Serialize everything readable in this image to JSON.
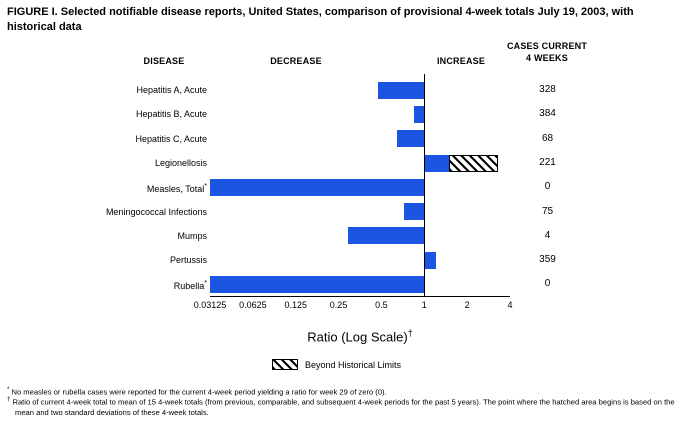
{
  "title": "FIGURE I. Selected notifiable disease reports, United States, comparison of provisional 4-week totals July 19, 2003, with historical data",
  "columns": {
    "disease": "DISEASE",
    "decrease": "DECREASE",
    "increase": "INCREASE",
    "cases_line1": "CASES CURRENT",
    "cases_line2": "4 WEEKS"
  },
  "chart_data": {
    "type": "bar",
    "orientation": "horizontal",
    "scale": "log2",
    "xmin": 0.03125,
    "xmax": 4,
    "baseline": 1,
    "axis_ticks": [
      "0.03125",
      "0.0625",
      "0.125",
      "0.25",
      "0.5",
      "1",
      "2",
      "4"
    ],
    "xlabel": "Ratio (Log Scale)",
    "xlabel_sup": "†",
    "bar_color": "#1c56e0",
    "grid": false,
    "rows": [
      {
        "disease": "Hepatitis A, Acute",
        "marker": "",
        "cases": "328",
        "ratio": 0.47
      },
      {
        "disease": "Hepatitis B, Acute",
        "marker": "",
        "cases": "384",
        "ratio": 0.85
      },
      {
        "disease": "Hepatitis C, Acute",
        "marker": "",
        "cases": "68",
        "ratio": 0.64
      },
      {
        "disease": "Legionellosis",
        "marker": "",
        "cases": "221",
        "ratio": 1.5,
        "hatch_to": 3.3
      },
      {
        "disease": "Measles, Total",
        "marker": "*",
        "cases": "0",
        "ratio": 0.03125
      },
      {
        "disease": "Meningococcal Infections",
        "marker": "",
        "cases": "75",
        "ratio": 0.72
      },
      {
        "disease": "Mumps",
        "marker": "",
        "cases": "4",
        "ratio": 0.29
      },
      {
        "disease": "Pertussis",
        "marker": "",
        "cases": "359",
        "ratio": 1.2
      },
      {
        "disease": "Rubella",
        "marker": "*",
        "cases": "0",
        "ratio": 0.03125
      }
    ],
    "legend": {
      "label": "Beyond Historical Limits",
      "swatch": "hatched",
      "position": "bottom"
    }
  },
  "footnotes": [
    {
      "marker": "*",
      "text": "No measles or rubella cases were reported for the current 4-week period yielding a ratio for week 29 of zero (0)."
    },
    {
      "marker": "†",
      "text": "Ratio of current 4-week total to mean of 15 4-week totals (from previous, comparable, and subsequent 4-week periods for the past 5 years). The point where the hatched area begins is based on the mean and two standard deviations of these 4-week totals."
    }
  ]
}
